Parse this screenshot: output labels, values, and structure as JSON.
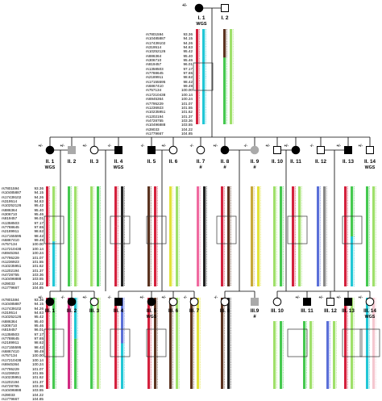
{
  "snps": [
    "rs7801594",
    "rs10485887",
    "rs17439102",
    "rs319514",
    "rs10252126",
    "rs886364",
    "rs306710",
    "rs819457",
    "rs1358503",
    "rs7788645",
    "rs2189911",
    "rs17155595",
    "rs6867410",
    "rs757134",
    "rs17210438",
    "rs6945364",
    "rs7795229",
    "rs1236923",
    "rs10235951",
    "rs1202194",
    "rs4728755",
    "rs10496888",
    "rs39033",
    "rs1779667"
  ],
  "positions": [
    "93.36",
    "94.15",
    "94.26",
    "94.63",
    "95.42",
    "95.40",
    "95.46",
    "96.01",
    "97.17",
    "97.65",
    "98.62",
    "98.42",
    "99.49",
    "100.00",
    "100.14",
    "100.24",
    "101.07",
    "101.55",
    "101.62",
    "101.37",
    "103.36",
    "103.55",
    "104.22",
    "104.85"
  ],
  "gen1": [
    {
      "id": "I. 1",
      "wgs": "WGS",
      "status": "+/-"
    },
    {
      "id": "I. 2",
      "status": ""
    }
  ],
  "gen2": [
    {
      "id": "II. 1",
      "wgs": "WGS",
      "status": "+/-"
    },
    {
      "id": "II. 2",
      "status": "+/-"
    },
    {
      "id": "II. 3",
      "status": "+/-"
    },
    {
      "id": "II. 4",
      "wgs": "WGS",
      "status": "-/-"
    },
    {
      "id": "II. 5",
      "status": "-/-"
    },
    {
      "id": "II. 6",
      "status": "+/-"
    },
    {
      "id": "II. 7",
      "mark": "#",
      "status": "-/-"
    },
    {
      "id": "II. 8",
      "mark": "#",
      "status": "+/-"
    },
    {
      "id": "II. 9",
      "mark": "#",
      "status": "-/-"
    },
    {
      "id": "II. 10",
      "status": "+/-"
    },
    {
      "id": "II. 11",
      "status": "+/-"
    },
    {
      "id": "II. 12",
      "status": "-/-"
    },
    {
      "id": "II. 13",
      "status": "+/-"
    },
    {
      "id": "II. 14",
      "wgs": "WGS",
      "status": "+/-"
    }
  ],
  "gen3": [
    {
      "id": "III. 1",
      "status": "+/-"
    },
    {
      "id": "III. 2",
      "status": "-/-"
    },
    {
      "id": "III. 3",
      "status": "+/-"
    },
    {
      "id": "III. 4",
      "status": "-/-"
    },
    {
      "id": "III. 5",
      "wgs": "WGS",
      "status": "+/-"
    },
    {
      "id": "III. 6",
      "status": "+/-"
    },
    {
      "id": "III. 7",
      "status": "-/-"
    },
    {
      "id": "III. 8",
      "status": "-/-"
    },
    {
      "id": "III.9",
      "mark": "#",
      "status": ""
    },
    {
      "id": "III. 10",
      "status": ""
    },
    {
      "id": "III. 11",
      "status": "+/-"
    },
    {
      "id": "III. 12",
      "status": "+/-"
    },
    {
      "id": "III. 13",
      "status": "+/-"
    },
    {
      "id": "III. 14",
      "wgs": "WGS",
      "status": "+/-"
    }
  ],
  "colors": {
    "red": "#d4213d",
    "cyan": "#21c7d6",
    "green": "#45c94f",
    "lime": "#9fe06a",
    "yellow": "#e2e23a",
    "olive": "#c7a83a",
    "brown": "#5b3320",
    "pink": "#f06aa0",
    "magenta": "#d12a82",
    "blue": "#5a6fd8",
    "black": "#222222",
    "grey": "#888888",
    "lightpink": "#f5c7cf",
    "purple": "#9a6cc4"
  }
}
